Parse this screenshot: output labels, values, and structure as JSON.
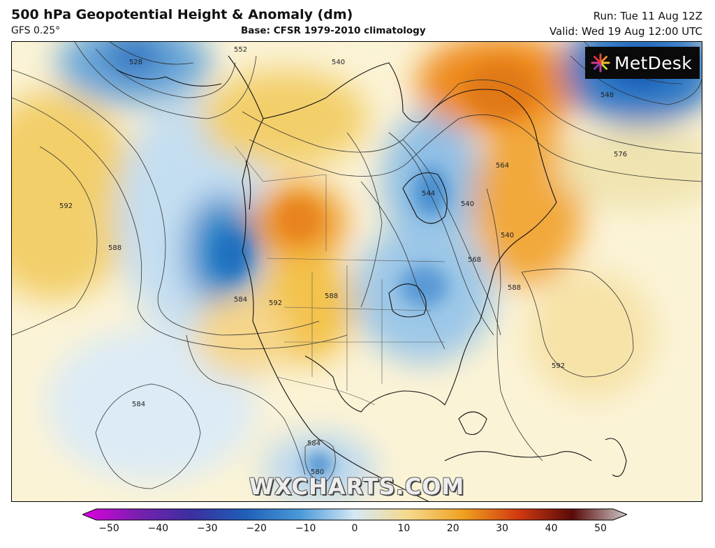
{
  "header": {
    "title": "500 hPa Geopotential Height & Anomaly (dm)",
    "model": "GFS 0.25°",
    "base": "Base: CFSR 1979-2010 climatology",
    "run": "Run: Tue 11 Aug 12Z",
    "valid": "Valid: Wed 19 Aug 12:00 UTC"
  },
  "brand": {
    "logo_text": "MetDesk",
    "icon": "metdesk-burst-icon"
  },
  "watermark": "WXCHARTS.COM",
  "map": {
    "contour_labels": [
      "552",
      "540",
      "528",
      "548",
      "576",
      "564",
      "544",
      "540",
      "540",
      "568",
      "588",
      "592",
      "588",
      "584",
      "592",
      "588",
      "592",
      "584",
      "584",
      "580"
    ]
  },
  "colorbar": {
    "ticks": [
      "−50",
      "−40",
      "−30",
      "−20",
      "−10",
      "0",
      "10",
      "20",
      "30",
      "40",
      "50"
    ],
    "colors": [
      "#e000e0",
      "#7a1fb0",
      "#3b2fa0",
      "#1f5fb8",
      "#4a9ad8",
      "#d6e8f4",
      "#f5d98a",
      "#f0a020",
      "#d23a10",
      "#5a0a0a",
      "#cfc8c8"
    ]
  }
}
